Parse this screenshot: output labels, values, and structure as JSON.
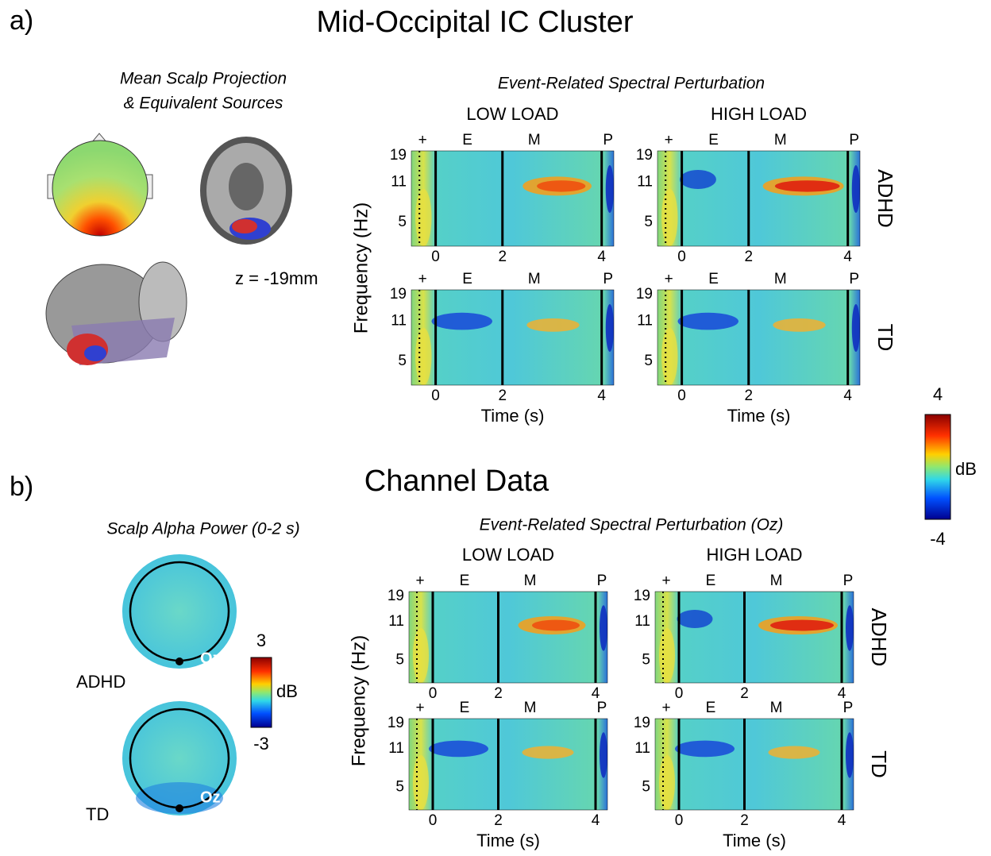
{
  "panel_a": {
    "label": "a)",
    "title": "Mid-Occipital IC Cluster",
    "scalp_title_1": "Mean Scalp Projection",
    "scalp_title_2": "& Equivalent Sources",
    "z_label": "z = -19mm",
    "ersp_title": "Event-Related Spectral Perturbation",
    "col_labels": [
      "LOW LOAD",
      "HIGH LOAD"
    ],
    "row_labels": [
      "ADHD",
      "TD"
    ],
    "y_axis_label": "Frequency (Hz)",
    "x_axis_label": "Time (s)",
    "yticks": [
      "19",
      "11",
      "5"
    ],
    "xticks": [
      "0",
      "2",
      "4"
    ],
    "events": [
      "+",
      "E",
      "M",
      "P"
    ],
    "colorbar": {
      "max": "4",
      "unit": "dB",
      "min": "-4"
    }
  },
  "panel_b": {
    "label": "b)",
    "title": "Channel Data",
    "scalp_title": "Scalp Alpha Power (0-2 s)",
    "scalp_labels": [
      "ADHD",
      "TD"
    ],
    "electrode": "Oz",
    "colorbar": {
      "max": "3",
      "unit": "dB",
      "min": "-3"
    },
    "ersp_title": "Event-Related Spectral Perturbation (Oz)",
    "col_labels": [
      "LOW LOAD",
      "HIGH LOAD"
    ],
    "row_labels": [
      "ADHD",
      "TD"
    ],
    "y_axis_label": "Frequency (Hz)",
    "x_axis_label": "Time (s)",
    "yticks": [
      "19",
      "11",
      "5"
    ],
    "xticks": [
      "0",
      "2",
      "4"
    ],
    "events": [
      "+",
      "E",
      "M",
      "P"
    ]
  }
}
